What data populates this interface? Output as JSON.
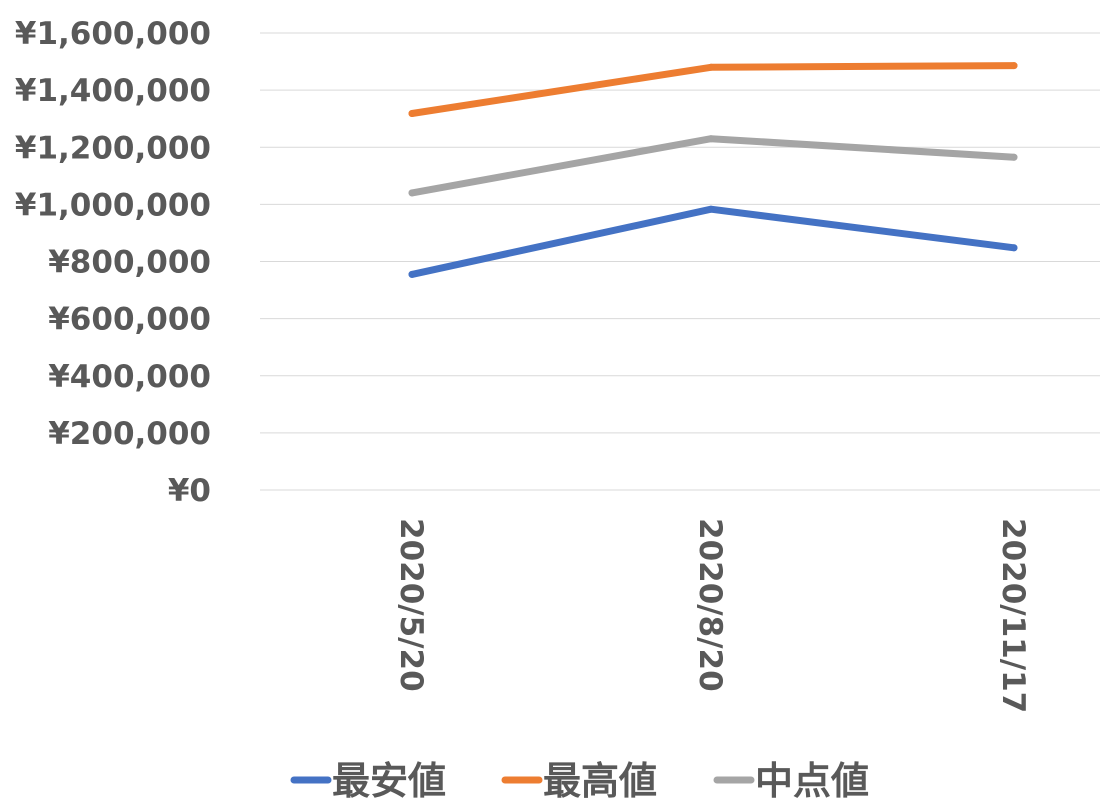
{
  "chart_data": {
    "type": "line",
    "title": "",
    "xlabel": "",
    "ylabel": "",
    "categories": [
      "2020/5/20",
      "2020/8/20",
      "2020/11/17"
    ],
    "y_tick_labels": [
      "¥0",
      "¥200,000",
      "¥400,000",
      "¥600,000",
      "¥800,000",
      "¥1,000,000",
      "¥1,200,000",
      "¥1,400,000",
      "¥1,600,000"
    ],
    "ylim": [
      0,
      1600000
    ],
    "y_tick_step": 200000,
    "grid": true,
    "legend_position": "bottom",
    "series": [
      {
        "name": "最安値",
        "color": "#4472C4",
        "values": [
          755000,
          983000,
          848000
        ]
      },
      {
        "name": "最高値",
        "color": "#ED7D31",
        "values": [
          1318000,
          1480000,
          1486000
        ]
      },
      {
        "name": "中点値",
        "color": "#A5A5A5",
        "values": [
          1040000,
          1230000,
          1165000
        ]
      }
    ]
  }
}
